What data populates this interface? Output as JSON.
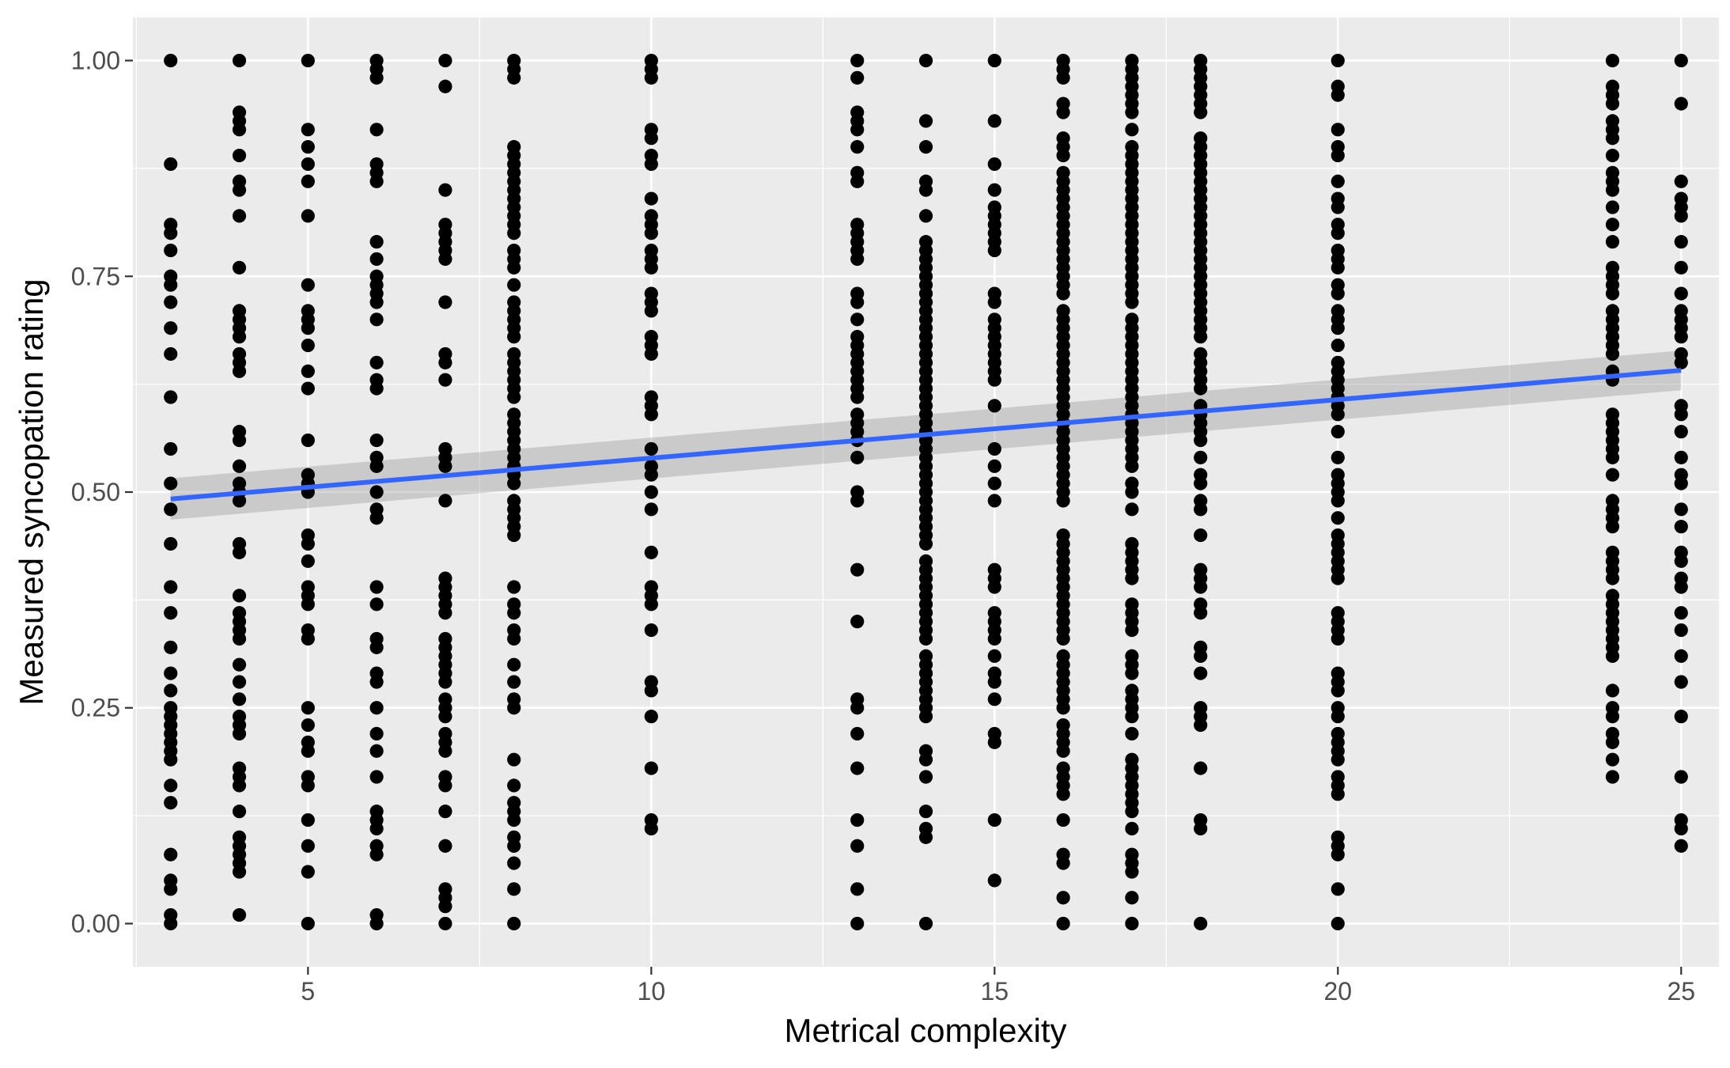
{
  "chart_data": {
    "type": "scatter",
    "title": "",
    "xlabel": "Metrical complexity",
    "ylabel": "Measured syncopation rating",
    "xlim": [
      2.45,
      25.55
    ],
    "ylim": [
      -0.05,
      1.05
    ],
    "x_ticks": [
      5,
      10,
      15,
      20,
      25
    ],
    "x_tick_labels": [
      "5",
      "10",
      "15",
      "20",
      "25"
    ],
    "y_ticks": [
      0,
      0.25,
      0.5,
      0.75,
      1
    ],
    "y_tick_labels": [
      "0.00",
      "0.25",
      "0.50",
      "0.75",
      "1.00"
    ],
    "grid": true,
    "legend": "none",
    "colors": {
      "panel": "#ebebeb",
      "grid_major": "#ffffff",
      "points": "#000000",
      "fit_line": "#3366ff",
      "confidence_band": "#999999"
    },
    "fit": {
      "method": "lm",
      "x": [
        3,
        25
      ],
      "y": [
        0.492,
        0.641
      ],
      "ci_lower": [
        0.468,
        0.618
      ],
      "ci_upper": [
        0.516,
        0.664
      ]
    },
    "series": [
      {
        "x": 3,
        "y": [
          1.0,
          0.88,
          0.81,
          0.8,
          0.78,
          0.75,
          0.74,
          0.72,
          0.69,
          0.66,
          0.61,
          0.55,
          0.51,
          0.48,
          0.44,
          0.39,
          0.36,
          0.32,
          0.29,
          0.27,
          0.25,
          0.24,
          0.23,
          0.22,
          0.21,
          0.2,
          0.19,
          0.16,
          0.14,
          0.08,
          0.05,
          0.04,
          0.01,
          0.0
        ]
      },
      {
        "x": 4,
        "y": [
          1.0,
          0.94,
          0.93,
          0.92,
          0.89,
          0.86,
          0.85,
          0.82,
          0.76,
          0.71,
          0.7,
          0.69,
          0.68,
          0.66,
          0.65,
          0.64,
          0.57,
          0.56,
          0.53,
          0.51,
          0.5,
          0.49,
          0.44,
          0.43,
          0.38,
          0.36,
          0.35,
          0.34,
          0.33,
          0.3,
          0.28,
          0.26,
          0.24,
          0.23,
          0.22,
          0.18,
          0.17,
          0.16,
          0.13,
          0.1,
          0.09,
          0.08,
          0.07,
          0.06,
          0.01
        ]
      },
      {
        "x": 5,
        "y": [
          1.0,
          0.92,
          0.9,
          0.88,
          0.86,
          0.82,
          0.74,
          0.71,
          0.7,
          0.69,
          0.67,
          0.64,
          0.62,
          0.56,
          0.52,
          0.51,
          0.5,
          0.45,
          0.44,
          0.42,
          0.39,
          0.38,
          0.37,
          0.34,
          0.33,
          0.25,
          0.23,
          0.21,
          0.2,
          0.17,
          0.16,
          0.12,
          0.09,
          0.06,
          0.0
        ]
      },
      {
        "x": 6,
        "y": [
          1.0,
          0.99,
          0.98,
          0.92,
          0.88,
          0.87,
          0.86,
          0.79,
          0.77,
          0.75,
          0.74,
          0.73,
          0.72,
          0.7,
          0.65,
          0.63,
          0.62,
          0.56,
          0.54,
          0.53,
          0.5,
          0.48,
          0.47,
          0.39,
          0.37,
          0.33,
          0.32,
          0.29,
          0.28,
          0.25,
          0.22,
          0.2,
          0.17,
          0.13,
          0.12,
          0.11,
          0.09,
          0.08,
          0.01,
          0.0
        ]
      },
      {
        "x": 7,
        "y": [
          1.0,
          0.97,
          0.85,
          0.81,
          0.8,
          0.79,
          0.78,
          0.77,
          0.72,
          0.66,
          0.65,
          0.63,
          0.55,
          0.54,
          0.53,
          0.49,
          0.4,
          0.39,
          0.38,
          0.37,
          0.36,
          0.33,
          0.32,
          0.31,
          0.3,
          0.29,
          0.28,
          0.26,
          0.25,
          0.24,
          0.22,
          0.21,
          0.2,
          0.17,
          0.16,
          0.13,
          0.09,
          0.04,
          0.03,
          0.02,
          0.0
        ]
      },
      {
        "x": 8,
        "y": [
          1.0,
          0.99,
          0.98,
          0.9,
          0.89,
          0.88,
          0.87,
          0.86,
          0.85,
          0.84,
          0.83,
          0.82,
          0.81,
          0.8,
          0.78,
          0.77,
          0.76,
          0.74,
          0.72,
          0.71,
          0.7,
          0.69,
          0.68,
          0.66,
          0.65,
          0.64,
          0.63,
          0.62,
          0.61,
          0.59,
          0.58,
          0.57,
          0.56,
          0.55,
          0.54,
          0.53,
          0.52,
          0.51,
          0.49,
          0.48,
          0.47,
          0.46,
          0.45,
          0.39,
          0.37,
          0.36,
          0.34,
          0.33,
          0.3,
          0.28,
          0.26,
          0.25,
          0.19,
          0.16,
          0.14,
          0.13,
          0.12,
          0.1,
          0.09,
          0.07,
          0.04,
          0.0
        ]
      },
      {
        "x": 10,
        "y": [
          1.0,
          0.99,
          0.98,
          0.92,
          0.91,
          0.89,
          0.88,
          0.84,
          0.82,
          0.81,
          0.8,
          0.78,
          0.77,
          0.76,
          0.73,
          0.72,
          0.71,
          0.68,
          0.67,
          0.66,
          0.61,
          0.6,
          0.59,
          0.55,
          0.53,
          0.52,
          0.5,
          0.48,
          0.43,
          0.39,
          0.38,
          0.37,
          0.34,
          0.28,
          0.27,
          0.24,
          0.18,
          0.12,
          0.11
        ]
      },
      {
        "x": 13,
        "y": [
          1.0,
          0.98,
          0.94,
          0.93,
          0.92,
          0.9,
          0.87,
          0.86,
          0.81,
          0.8,
          0.79,
          0.78,
          0.77,
          0.73,
          0.72,
          0.7,
          0.68,
          0.67,
          0.66,
          0.65,
          0.64,
          0.63,
          0.62,
          0.61,
          0.59,
          0.58,
          0.57,
          0.56,
          0.54,
          0.5,
          0.49,
          0.41,
          0.35,
          0.26,
          0.25,
          0.22,
          0.18,
          0.12,
          0.09,
          0.04,
          0.0
        ]
      },
      {
        "x": 14,
        "y": [
          1.0,
          0.93,
          0.9,
          0.86,
          0.85,
          0.82,
          0.79,
          0.78,
          0.77,
          0.76,
          0.75,
          0.74,
          0.73,
          0.72,
          0.71,
          0.7,
          0.69,
          0.68,
          0.67,
          0.66,
          0.65,
          0.64,
          0.63,
          0.62,
          0.61,
          0.6,
          0.59,
          0.58,
          0.57,
          0.56,
          0.55,
          0.54,
          0.53,
          0.52,
          0.51,
          0.5,
          0.49,
          0.48,
          0.47,
          0.46,
          0.45,
          0.44,
          0.42,
          0.41,
          0.4,
          0.39,
          0.38,
          0.37,
          0.36,
          0.35,
          0.34,
          0.33,
          0.31,
          0.3,
          0.29,
          0.28,
          0.27,
          0.26,
          0.25,
          0.24,
          0.2,
          0.19,
          0.17,
          0.13,
          0.11,
          0.1,
          0.0
        ]
      },
      {
        "x": 15,
        "y": [
          1.0,
          0.93,
          0.88,
          0.85,
          0.83,
          0.82,
          0.81,
          0.8,
          0.79,
          0.78,
          0.73,
          0.72,
          0.7,
          0.69,
          0.68,
          0.67,
          0.66,
          0.65,
          0.64,
          0.63,
          0.6,
          0.55,
          0.53,
          0.51,
          0.49,
          0.41,
          0.4,
          0.39,
          0.36,
          0.35,
          0.34,
          0.33,
          0.31,
          0.29,
          0.28,
          0.26,
          0.22,
          0.21,
          0.12,
          0.05
        ]
      },
      {
        "x": 16,
        "y": [
          1.0,
          0.99,
          0.98,
          0.95,
          0.94,
          0.91,
          0.9,
          0.89,
          0.87,
          0.86,
          0.85,
          0.84,
          0.83,
          0.82,
          0.81,
          0.8,
          0.79,
          0.78,
          0.77,
          0.76,
          0.75,
          0.74,
          0.73,
          0.71,
          0.7,
          0.69,
          0.68,
          0.67,
          0.66,
          0.65,
          0.64,
          0.63,
          0.62,
          0.61,
          0.6,
          0.59,
          0.58,
          0.57,
          0.56,
          0.55,
          0.54,
          0.53,
          0.52,
          0.51,
          0.5,
          0.49,
          0.45,
          0.44,
          0.43,
          0.42,
          0.41,
          0.4,
          0.39,
          0.38,
          0.37,
          0.36,
          0.35,
          0.34,
          0.33,
          0.31,
          0.3,
          0.29,
          0.28,
          0.27,
          0.26,
          0.25,
          0.23,
          0.22,
          0.21,
          0.2,
          0.18,
          0.17,
          0.16,
          0.15,
          0.12,
          0.08,
          0.07,
          0.03,
          0.0
        ]
      },
      {
        "x": 17,
        "y": [
          1.0,
          0.99,
          0.98,
          0.97,
          0.96,
          0.95,
          0.94,
          0.92,
          0.9,
          0.89,
          0.88,
          0.87,
          0.86,
          0.85,
          0.84,
          0.83,
          0.82,
          0.81,
          0.8,
          0.79,
          0.78,
          0.77,
          0.76,
          0.75,
          0.74,
          0.73,
          0.72,
          0.7,
          0.69,
          0.68,
          0.67,
          0.66,
          0.65,
          0.64,
          0.63,
          0.62,
          0.61,
          0.6,
          0.59,
          0.58,
          0.57,
          0.56,
          0.55,
          0.54,
          0.53,
          0.51,
          0.5,
          0.48,
          0.44,
          0.43,
          0.42,
          0.41,
          0.4,
          0.37,
          0.36,
          0.35,
          0.34,
          0.31,
          0.3,
          0.29,
          0.27,
          0.26,
          0.25,
          0.24,
          0.22,
          0.19,
          0.18,
          0.17,
          0.16,
          0.15,
          0.14,
          0.13,
          0.11,
          0.08,
          0.07,
          0.06,
          0.03,
          0.0
        ]
      },
      {
        "x": 18,
        "y": [
          1.0,
          0.99,
          0.98,
          0.97,
          0.96,
          0.95,
          0.94,
          0.91,
          0.9,
          0.89,
          0.88,
          0.87,
          0.86,
          0.85,
          0.84,
          0.83,
          0.82,
          0.81,
          0.8,
          0.79,
          0.78,
          0.77,
          0.76,
          0.75,
          0.74,
          0.73,
          0.72,
          0.71,
          0.7,
          0.69,
          0.68,
          0.66,
          0.65,
          0.64,
          0.63,
          0.62,
          0.6,
          0.59,
          0.58,
          0.57,
          0.56,
          0.54,
          0.52,
          0.51,
          0.49,
          0.48,
          0.45,
          0.41,
          0.4,
          0.39,
          0.37,
          0.36,
          0.32,
          0.31,
          0.29,
          0.25,
          0.24,
          0.23,
          0.18,
          0.12,
          0.11,
          0.0
        ]
      },
      {
        "x": 20,
        "y": [
          1.0,
          0.97,
          0.96,
          0.92,
          0.9,
          0.89,
          0.86,
          0.84,
          0.83,
          0.81,
          0.8,
          0.78,
          0.77,
          0.76,
          0.74,
          0.73,
          0.71,
          0.7,
          0.69,
          0.67,
          0.65,
          0.64,
          0.63,
          0.62,
          0.61,
          0.6,
          0.59,
          0.57,
          0.54,
          0.52,
          0.51,
          0.5,
          0.49,
          0.47,
          0.45,
          0.44,
          0.43,
          0.42,
          0.41,
          0.4,
          0.36,
          0.35,
          0.34,
          0.33,
          0.29,
          0.28,
          0.27,
          0.25,
          0.24,
          0.22,
          0.21,
          0.2,
          0.19,
          0.17,
          0.16,
          0.15,
          0.1,
          0.09,
          0.08,
          0.04,
          0.0
        ]
      },
      {
        "x": 24,
        "y": [
          1.0,
          0.97,
          0.96,
          0.95,
          0.93,
          0.92,
          0.91,
          0.89,
          0.87,
          0.86,
          0.85,
          0.83,
          0.81,
          0.79,
          0.76,
          0.75,
          0.74,
          0.73,
          0.71,
          0.7,
          0.69,
          0.68,
          0.67,
          0.66,
          0.64,
          0.63,
          0.59,
          0.58,
          0.57,
          0.56,
          0.55,
          0.54,
          0.52,
          0.49,
          0.48,
          0.47,
          0.46,
          0.43,
          0.42,
          0.41,
          0.4,
          0.38,
          0.37,
          0.36,
          0.35,
          0.34,
          0.33,
          0.32,
          0.31,
          0.27,
          0.25,
          0.24,
          0.22,
          0.21,
          0.19,
          0.17
        ]
      },
      {
        "x": 25,
        "y": [
          1.0,
          0.95,
          0.86,
          0.84,
          0.83,
          0.82,
          0.79,
          0.76,
          0.73,
          0.71,
          0.7,
          0.69,
          0.68,
          0.66,
          0.65,
          0.6,
          0.59,
          0.57,
          0.54,
          0.52,
          0.51,
          0.48,
          0.46,
          0.43,
          0.42,
          0.4,
          0.39,
          0.36,
          0.34,
          0.31,
          0.28,
          0.24,
          0.17,
          0.12,
          0.11,
          0.09
        ]
      }
    ]
  }
}
